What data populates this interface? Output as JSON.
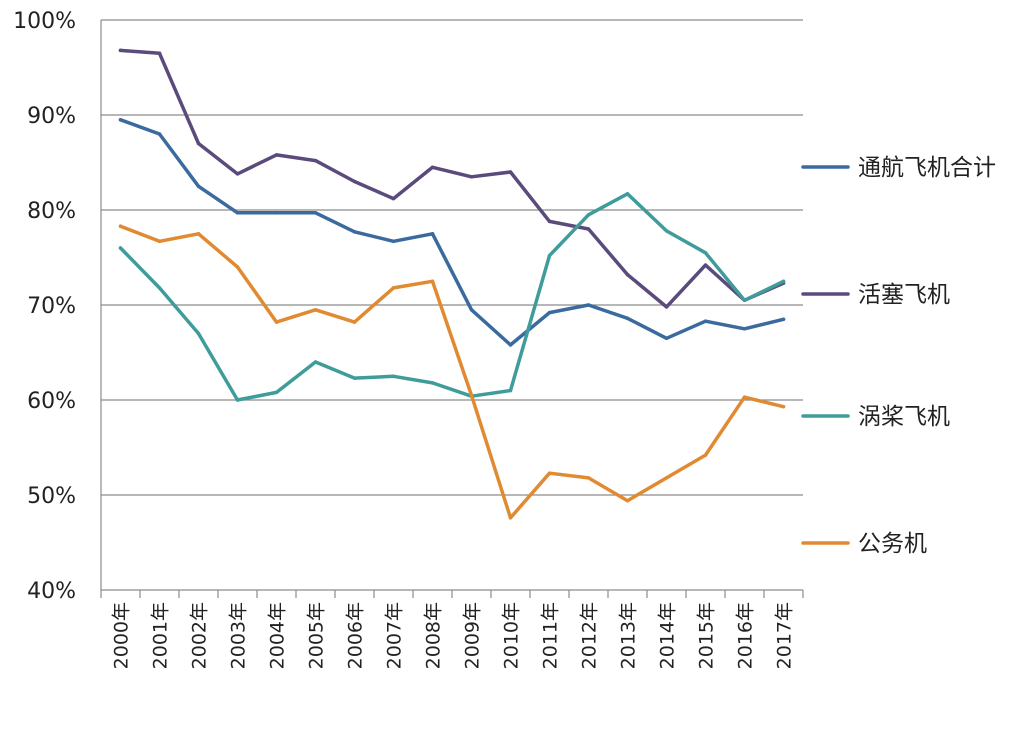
{
  "chart_data": {
    "type": "line",
    "categories": [
      "2000年",
      "2001年",
      "2002年",
      "2003年",
      "2004年",
      "2005年",
      "2006年",
      "2007年",
      "2008年",
      "2009年",
      "2010年",
      "2011年",
      "2012年",
      "2013年",
      "2014年",
      "2015年",
      "2016年",
      "2017年"
    ],
    "y_ticks": [
      "40%",
      "50%",
      "60%",
      "70%",
      "80%",
      "90%",
      "100%"
    ],
    "ylim": [
      40,
      100
    ],
    "grid": true,
    "legend_position": "right",
    "series": [
      {
        "name": "通航飞机合计",
        "color": "#3a6a9e",
        "values": [
          89.5,
          88.0,
          82.5,
          79.7,
          79.7,
          79.7,
          77.7,
          76.7,
          77.5,
          69.5,
          65.8,
          69.2,
          70.0,
          68.6,
          66.5,
          68.3,
          67.5,
          68.5
        ]
      },
      {
        "name": "活塞飞机",
        "color": "#5b4a7c",
        "values": [
          96.8,
          96.5,
          87.0,
          83.8,
          85.8,
          85.2,
          83.0,
          81.2,
          84.5,
          83.5,
          84.0,
          78.8,
          78.0,
          73.2,
          69.8,
          74.2,
          70.5,
          72.3
        ]
      },
      {
        "name": "涡桨飞机",
        "color": "#3f9c9a",
        "values": [
          76.0,
          71.8,
          67.0,
          60.0,
          60.8,
          64.0,
          62.3,
          62.5,
          61.8,
          60.4,
          61.0,
          75.2,
          79.5,
          81.7,
          77.8,
          75.5,
          70.5,
          72.5
        ]
      },
      {
        "name": "公务机",
        "color": "#e08a32",
        "values": [
          78.3,
          76.7,
          77.5,
          74.0,
          68.2,
          69.5,
          68.2,
          71.8,
          72.5,
          60.5,
          47.6,
          52.3,
          51.8,
          49.4,
          51.8,
          54.2,
          60.3,
          59.3
        ]
      }
    ]
  }
}
